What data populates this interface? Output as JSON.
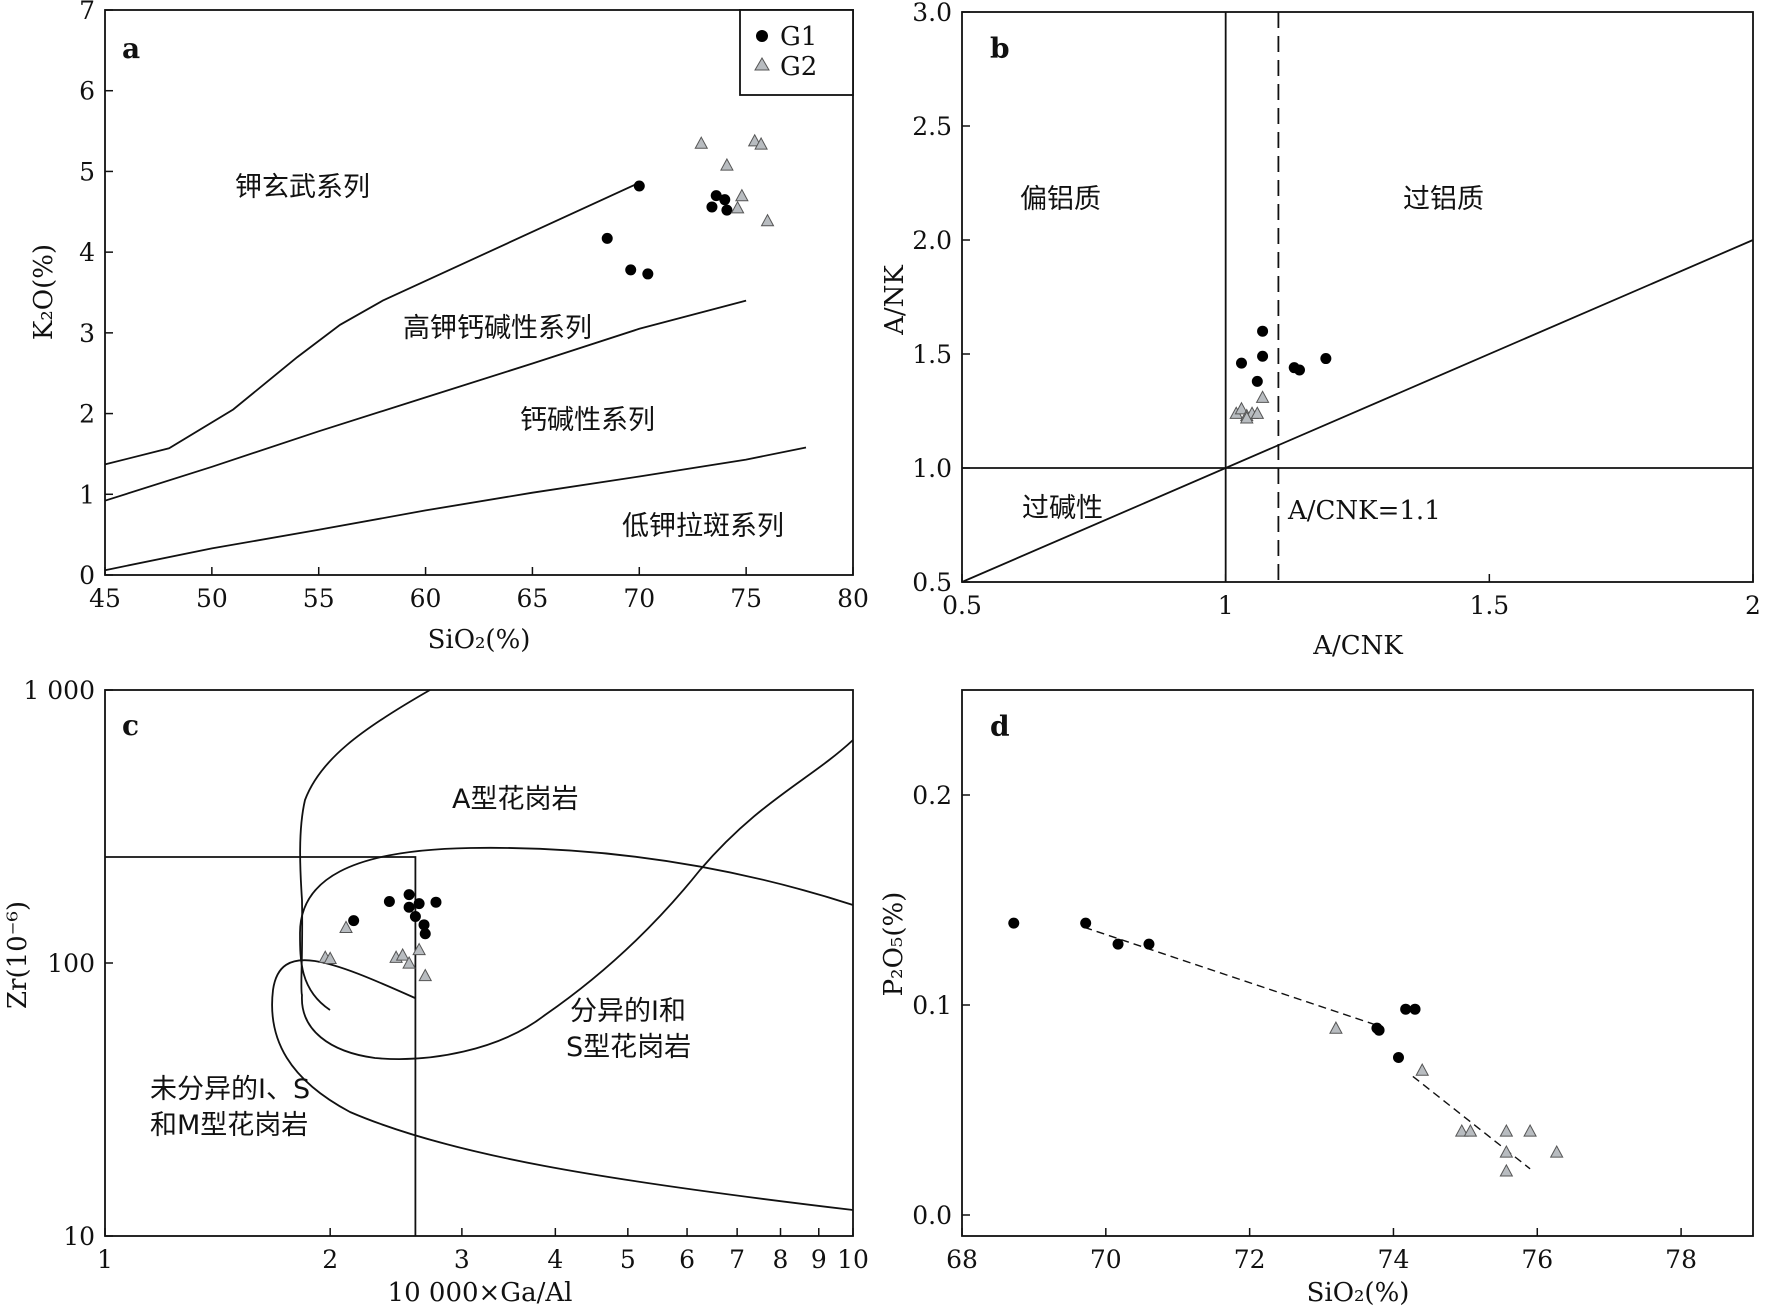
{
  "colors": {
    "g1": "#000000",
    "g2_fill": "#b8bcc0",
    "g2_stroke": "#555555",
    "line": "#111111"
  },
  "legend": {
    "g1": "G1",
    "g2": "G2"
  },
  "chart_data": [
    {
      "id": "a",
      "type": "scatter",
      "panel_label": "a",
      "xlabel": "SiO₂(%)",
      "ylabel": "K₂O(%)",
      "xlim": [
        45,
        80
      ],
      "ylim": [
        0,
        7
      ],
      "xticks": [
        45,
        50,
        55,
        60,
        65,
        70,
        75,
        80
      ],
      "yticks": [
        0,
        1,
        2,
        3,
        4,
        5,
        6,
        7
      ],
      "regions": [
        "钾玄武系列",
        "高钾钙碱性系列",
        "钙碱性系列",
        "低钾拉斑系列"
      ],
      "series": [
        {
          "name": "G1",
          "points": [
            [
              70.0,
              4.82
            ],
            [
              68.5,
              4.17
            ],
            [
              69.6,
              3.78
            ],
            [
              70.4,
              3.73
            ],
            [
              73.6,
              4.7
            ],
            [
              74.0,
              4.65
            ],
            [
              73.4,
              4.56
            ],
            [
              74.1,
              4.52
            ]
          ]
        },
        {
          "name": "G2",
          "points": [
            [
              72.9,
              5.35
            ],
            [
              75.4,
              5.38
            ],
            [
              75.7,
              5.34
            ],
            [
              74.1,
              5.08
            ],
            [
              74.8,
              4.7
            ],
            [
              74.6,
              4.55
            ],
            [
              76.0,
              4.39
            ]
          ]
        }
      ],
      "boundary_lines": [
        [
          [
            45,
            1.37
          ],
          [
            48,
            1.57
          ],
          [
            51,
            2.05
          ],
          [
            54,
            2.7
          ],
          [
            56,
            3.1
          ],
          [
            58,
            3.4
          ],
          [
            70,
            4.86
          ]
        ],
        [
          [
            45,
            0.92
          ],
          [
            50,
            1.34
          ],
          [
            55,
            1.78
          ],
          [
            60,
            2.2
          ],
          [
            65,
            2.62
          ],
          [
            70,
            3.05
          ],
          [
            75,
            3.4
          ]
        ],
        [
          [
            45,
            0.06
          ],
          [
            50,
            0.33
          ],
          [
            55,
            0.56
          ],
          [
            60,
            0.8
          ],
          [
            65,
            1.02
          ],
          [
            70,
            1.22
          ],
          [
            75,
            1.43
          ],
          [
            77.8,
            1.58
          ]
        ]
      ]
    },
    {
      "id": "b",
      "type": "scatter",
      "panel_label": "b",
      "xlabel": "A/CNK",
      "ylabel": "A/NK",
      "xlim": [
        0.5,
        2.0
      ],
      "ylim": [
        0.5,
        3.0
      ],
      "xticks": [
        0.5,
        1.0,
        1.5,
        2.0
      ],
      "yticks": [
        0.5,
        1.0,
        1.5,
        2.0,
        2.5,
        3.0
      ],
      "regions": [
        "偏铝质",
        "过铝质",
        "过碱性"
      ],
      "annotation": "A/CNK=1.1",
      "series": [
        {
          "name": "G1",
          "points": [
            [
              1.07,
              1.6
            ],
            [
              1.03,
              1.46
            ],
            [
              1.07,
              1.49
            ],
            [
              1.06,
              1.38
            ],
            [
              1.13,
              1.44
            ],
            [
              1.14,
              1.43
            ],
            [
              1.19,
              1.48
            ]
          ]
        },
        {
          "name": "G2",
          "points": [
            [
              1.07,
              1.31
            ],
            [
              1.02,
              1.24
            ],
            [
              1.03,
              1.26
            ],
            [
              1.04,
              1.23
            ],
            [
              1.05,
              1.24
            ],
            [
              1.06,
              1.24
            ],
            [
              1.04,
              1.22
            ]
          ]
        }
      ]
    },
    {
      "id": "c",
      "type": "scatter",
      "panel_label": "c",
      "xlabel": "10 000×Ga/Al",
      "ylabel": "Zr(10⁻⁶)",
      "xscale": "log",
      "yscale": "log",
      "xlim": [
        1,
        10
      ],
      "ylim": [
        10,
        1000
      ],
      "xticks": [
        1,
        2,
        3,
        4,
        5,
        6,
        7,
        8,
        9,
        10
      ],
      "xticklabels": [
        "1",
        "2",
        "3",
        "4",
        "5",
        "6",
        "7",
        "8",
        "9",
        "10"
      ],
      "yticks": [
        10,
        100,
        1000
      ],
      "yticklabels": [
        "10",
        "100",
        "1 000"
      ],
      "regions": [
        "A型花岗岩",
        "分异的I和",
        "S型花岗岩",
        "未分异的I、S",
        "和M型花岗岩"
      ],
      "series": [
        {
          "name": "G1",
          "points": [
            [
              2.55,
              178
            ],
            [
              2.4,
              168
            ],
            [
              2.55,
              160
            ],
            [
              2.63,
              165
            ],
            [
              2.77,
              167
            ],
            [
              2.15,
              143
            ],
            [
              2.6,
              148
            ],
            [
              2.67,
              138
            ],
            [
              2.68,
              128
            ]
          ]
        },
        {
          "name": "G2",
          "points": [
            [
              1.97,
              105
            ],
            [
              2.0,
              104
            ],
            [
              2.1,
              135
            ],
            [
              2.45,
              105
            ],
            [
              2.5,
              107
            ],
            [
              2.55,
              100
            ],
            [
              2.63,
              112
            ],
            [
              2.68,
              90
            ]
          ]
        }
      ]
    },
    {
      "id": "d",
      "type": "scatter",
      "panel_label": "d",
      "xlabel": "SiO₂(%)",
      "ylabel": "P₂O₅(%)",
      "xlim": [
        68,
        79
      ],
      "ylim": [
        -0.01,
        0.25
      ],
      "xticks": [
        68,
        70,
        72,
        74,
        76,
        78
      ],
      "yticks": [
        0.0,
        0.1,
        0.2
      ],
      "yticklabels": [
        "0.0",
        "0.1",
        "0.2"
      ],
      "series": [
        {
          "name": "G1",
          "points": [
            [
              68.72,
              0.139
            ],
            [
              69.72,
              0.139
            ],
            [
              70.17,
              0.129
            ],
            [
              70.6,
              0.129
            ],
            [
              73.77,
              0.089
            ],
            [
              73.8,
              0.088
            ],
            [
              74.07,
              0.075
            ],
            [
              74.17,
              0.098
            ],
            [
              74.3,
              0.098
            ]
          ]
        },
        {
          "name": "G2",
          "points": [
            [
              73.2,
              0.089
            ],
            [
              74.4,
              0.069
            ],
            [
              74.95,
              0.04
            ],
            [
              75.07,
              0.04
            ],
            [
              75.57,
              0.04
            ],
            [
              75.57,
              0.03
            ],
            [
              75.57,
              0.021
            ],
            [
              75.9,
              0.04
            ],
            [
              76.27,
              0.03
            ]
          ]
        }
      ],
      "trend_lines": [
        [
          [
            69.7,
            0.137
          ],
          [
            73.8,
            0.09
          ]
        ],
        [
          [
            74.27,
            0.066
          ],
          [
            75.9,
            0.022
          ]
        ]
      ]
    }
  ]
}
